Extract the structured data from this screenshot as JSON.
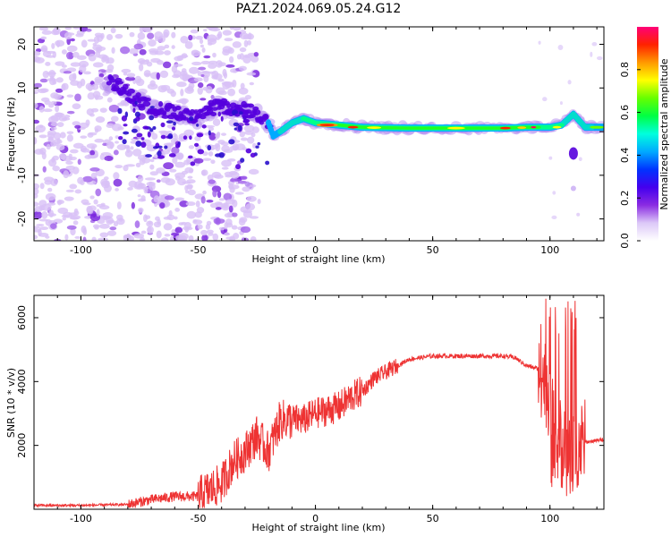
{
  "title": "PAZ1.2024.069.05.24.G12",
  "chart_data": [
    {
      "type": "heatmap",
      "xlabel": "Height of straight line (km)",
      "ylabel": "Frequency (Hz)",
      "xlim": [
        -120,
        123
      ],
      "ylim": [
        -25,
        24
      ],
      "xticks": [
        -100,
        -50,
        0,
        50,
        100
      ],
      "yticks": [
        -20,
        -10,
        0,
        10,
        20
      ],
      "colorbar": {
        "label": "Normalized spectral amplitude",
        "range": [
          0,
          1
        ],
        "ticks": [
          0.0,
          0.2,
          0.4,
          0.6,
          0.8
        ],
        "colors": [
          "#ffffff",
          "#dcc8f8",
          "#8a2be2",
          "#4400ee",
          "#0033ff",
          "#00aaff",
          "#00ffdd",
          "#00ff44",
          "#66ff00",
          "#ffff00",
          "#ff9900",
          "#ff2200",
          "#ff0077"
        ]
      },
      "ridge": {
        "x": [
          -85,
          -78,
          -72,
          -65,
          -58,
          -50,
          -45,
          -40,
          -35,
          -30,
          -25,
          -20,
          -18,
          -15,
          -10,
          -5,
          0,
          10,
          20,
          40,
          60,
          80,
          90,
          100,
          105,
          110,
          115,
          123
        ],
        "y": [
          11,
          8,
          6,
          5,
          4,
          3,
          5,
          6,
          5,
          5,
          4,
          2,
          -1,
          0,
          2,
          3,
          2,
          1.5,
          1,
          0.8,
          0.8,
          0.8,
          1,
          1,
          1.5,
          4,
          1,
          1
        ]
      }
    },
    {
      "type": "line",
      "xlabel": "Height of straight line (km)",
      "ylabel": "SNR (10 * v/v)",
      "xlim": [
        -120,
        123
      ],
      "ylim": [
        0,
        6700
      ],
      "xticks": [
        -100,
        -50,
        0,
        50,
        100
      ],
      "yticks": [
        2000,
        4000,
        6000
      ],
      "line_color": "#ee3333",
      "series": [
        {
          "x": [
            -120,
            -100,
            -80,
            -70,
            -60,
            -50,
            -40,
            -35,
            -30,
            -25,
            -20,
            -15,
            -10,
            -5,
            0,
            5,
            10,
            15,
            20,
            25,
            30,
            35,
            40,
            45,
            50,
            60,
            70,
            80,
            85,
            90,
            95,
            98,
            100,
            102,
            105,
            108,
            110,
            112,
            115,
            120,
            123
          ],
          "y": [
            120,
            120,
            150,
            300,
            400,
            400,
            800,
            1500,
            1800,
            2300,
            1800,
            2800,
            2800,
            2800,
            3000,
            3100,
            3200,
            3500,
            3700,
            4100,
            4300,
            4500,
            4700,
            4750,
            4800,
            4800,
            4800,
            4800,
            4750,
            4500,
            4400,
            4000,
            3500,
            2500,
            2000,
            1500,
            1800,
            2000,
            2100,
            2150,
            2200
          ]
        }
      ]
    }
  ]
}
